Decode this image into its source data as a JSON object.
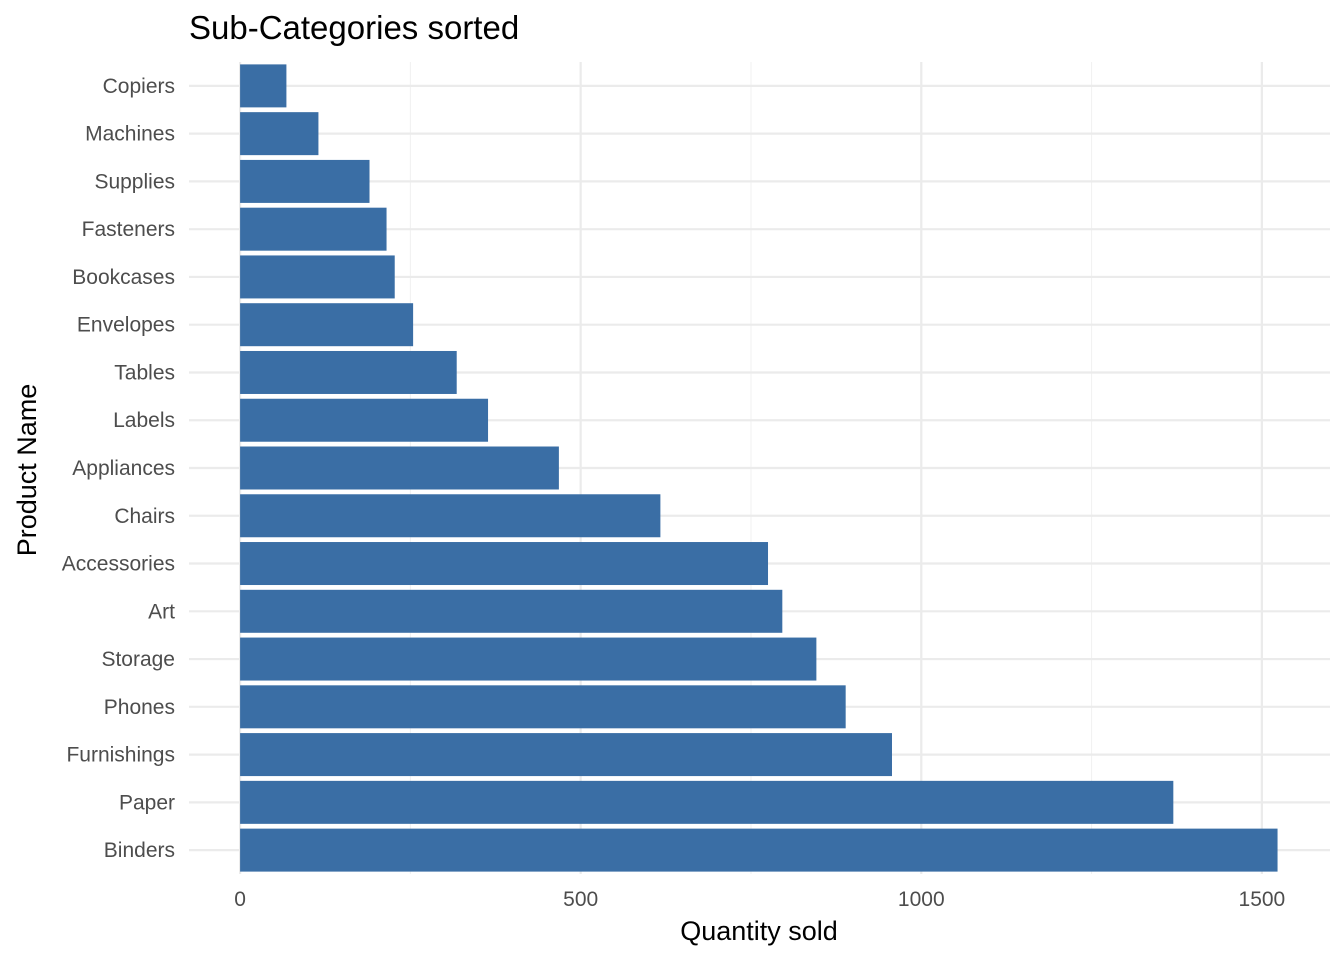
{
  "chart_data": {
    "type": "bar",
    "orientation": "horizontal",
    "title": "Sub-Categories sorted",
    "xlabel": "Quantity sold",
    "ylabel": "Product Name",
    "categories": [
      "Copiers",
      "Machines",
      "Supplies",
      "Fasteners",
      "Bookcases",
      "Envelopes",
      "Tables",
      "Labels",
      "Appliances",
      "Chairs",
      "Accessories",
      "Art",
      "Storage",
      "Phones",
      "Furnishings",
      "Paper",
      "Binders"
    ],
    "values": [
      68,
      115,
      190,
      215,
      227,
      254,
      318,
      364,
      468,
      617,
      775,
      796,
      846,
      889,
      957,
      1370,
      1523
    ],
    "xlim": [
      -75,
      1600
    ],
    "x_ticks": [
      0,
      500,
      1000,
      1500
    ],
    "x_tick_labels": [
      "0",
      "500",
      "1000",
      "1500"
    ],
    "x_minor_ticks": [
      250,
      750,
      1250
    ],
    "grid": true,
    "bar_color": "#3a6ea5",
    "grid_color": "#ebebeb",
    "legend": "none"
  }
}
